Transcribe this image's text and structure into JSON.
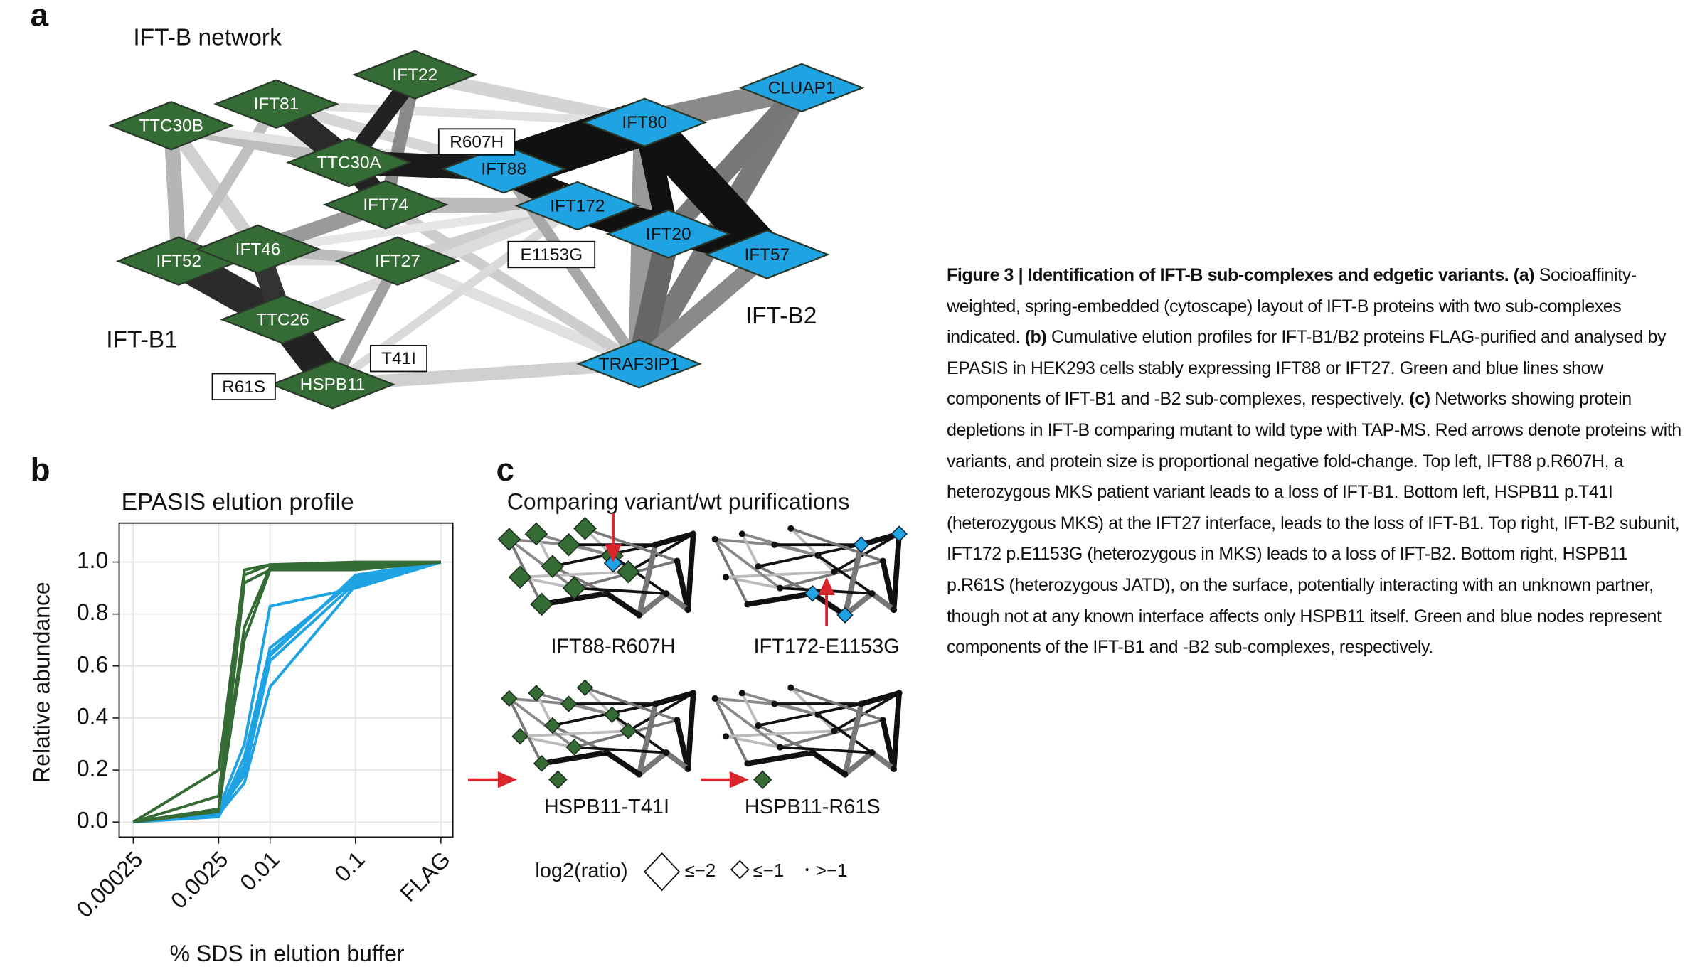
{
  "panel_labels": [
    "a",
    "b",
    "c"
  ],
  "network": {
    "title": "IFT-B network",
    "groups": [
      {
        "name": "IFT-B1",
        "color": "#356b35"
      },
      {
        "name": "IFT-B2",
        "color": "#1fa3e3"
      }
    ],
    "nodes": [
      {
        "label": "TTC30B",
        "group": 0
      },
      {
        "label": "IFT81",
        "group": 0
      },
      {
        "label": "IFT22",
        "group": 0
      },
      {
        "label": "TTC30A",
        "group": 0
      },
      {
        "label": "IFT74",
        "group": 0
      },
      {
        "label": "IFT52",
        "group": 0
      },
      {
        "label": "IFT46",
        "group": 0
      },
      {
        "label": "IFT27",
        "group": 0
      },
      {
        "label": "TTC26",
        "group": 0
      },
      {
        "label": "HSPB11",
        "group": 0
      },
      {
        "label": "CLUAP1",
        "group": 1
      },
      {
        "label": "IFT80",
        "group": 1
      },
      {
        "label": "IFT88",
        "group": 1
      },
      {
        "label": "IFT172",
        "group": 1
      },
      {
        "label": "IFT20",
        "group": 1
      },
      {
        "label": "IFT57",
        "group": 1
      },
      {
        "label": "TRAF3IP1",
        "group": 1
      }
    ],
    "variants": [
      "R607H",
      "E1153G",
      "T41I",
      "R61S"
    ]
  },
  "chart_data": {
    "type": "line",
    "title": "EPASIS elution profile",
    "xlabel": "% SDS in elution buffer",
    "ylabel": "Relative abundance",
    "x": [
      0.00025,
      0.0025,
      0.005,
      0.01,
      0.1,
      1
    ],
    "xlog": true,
    "xlim": [
      0.000171,
      1.38
    ],
    "xticks": [
      0.00025,
      0.0025,
      0.01,
      0.1,
      {
        "value": 1,
        "label": "FLAG"
      }
    ],
    "ylim": [
      -0.058,
      1.15
    ],
    "yticks": [
      {
        "value": 0,
        "label": "0.0"
      },
      {
        "value": 0.2,
        "label": "0.2"
      },
      {
        "value": 0.4,
        "label": "0.4"
      },
      {
        "value": 0.6,
        "label": "0.6"
      },
      {
        "value": 0.8,
        "label": "0.8"
      },
      {
        "value": 1,
        "label": "1.0"
      }
    ],
    "grid": true,
    "series": [
      {
        "color": "#1fa3e3",
        "values": [
          0,
          0.05,
          0.3,
          0.83,
          0.9,
          1
        ]
      },
      {
        "color": "#1fa3e3",
        "values": [
          0,
          0.03,
          0.25,
          0.67,
          0.93,
          1
        ]
      },
      {
        "color": "#1fa3e3",
        "values": [
          0,
          0.03,
          0.22,
          0.65,
          0.94,
          1
        ]
      },
      {
        "color": "#1fa3e3",
        "values": [
          0,
          0.02,
          0.2,
          0.64,
          0.95,
          1
        ]
      },
      {
        "color": "#1fa3e3",
        "values": [
          0,
          0.04,
          0.18,
          0.62,
          0.92,
          1
        ]
      },
      {
        "color": "#1fa3e3",
        "values": [
          0,
          0.03,
          0.15,
          0.52,
          0.91,
          1
        ]
      },
      {
        "color": "#356b35",
        "values": [
          0,
          0.2,
          0.97,
          0.99,
          0.99,
          1
        ]
      },
      {
        "color": "#356b35",
        "values": [
          0,
          0.1,
          0.95,
          0.99,
          1,
          1
        ]
      },
      {
        "color": "#356b35",
        "values": [
          0,
          0.05,
          0.75,
          0.98,
          0.98,
          1
        ]
      },
      {
        "color": "#356b35",
        "values": [
          0,
          0.05,
          0.7,
          0.97,
          0.99,
          1
        ]
      },
      {
        "color": "#356b35",
        "values": [
          0,
          0.04,
          0.92,
          0.97,
          0.97,
          1
        ]
      }
    ]
  },
  "comparison": {
    "title": "Comparing variant/wt purifications",
    "panels": [
      "IFT88-R607H",
      "IFT172-E1153G",
      "HSPB11-T41I",
      "HSPB11-R61S"
    ],
    "legend": {
      "label": "log2(ratio)",
      "items": [
        "≤−2",
        "≤−1",
        ">−1"
      ]
    }
  },
  "caption": {
    "title": "Figure 3 | Identification of IFT-B sub-complexes and edgetic variants.",
    "parts": [
      {
        "label": "(a)",
        "text": "Socioaffinity-weighted, spring-embedded (cytoscape) layout of IFT-B proteins with two sub-complexes indicated."
      },
      {
        "label": "(b)",
        "text": "Cumulative elution profiles for IFT-B1/B2 proteins FLAG-purified and analysed by EPASIS in HEK293 cells stably expressing IFT88 or IFT27. Green and  blue lines show components of IFT-B1 and -B2 sub-complexes, respectively."
      },
      {
        "label": "(c)",
        "text": "Networks showing protein depletions in IFT-B comparing mutant to wild type with TAP-MS. Red arrows denote proteins with variants, and protein size is proportional negative fold-change. Top left, IFT88 p.R607H, a heterozygous MKS patient variant leads to a loss of IFT-B1. Bottom left, HSPB11 p.T41I (heterozygous MKS) at the IFT27 interface, leads to the loss of IFT-B1. Top right, IFT-B2 subunit, IFT172 p.E1153G (heterozygous in MKS) leads to a loss of IFT-B2. Bottom right, HSPB11 p.R61S (heterozygous JATD), on the surface, potentially interacting with an unknown partner, though not at any known interface affects only HSPB11 itself. Green and blue nodes represent components of the IFT-B1 and -B2 sub-complexes, respectively."
      }
    ]
  }
}
